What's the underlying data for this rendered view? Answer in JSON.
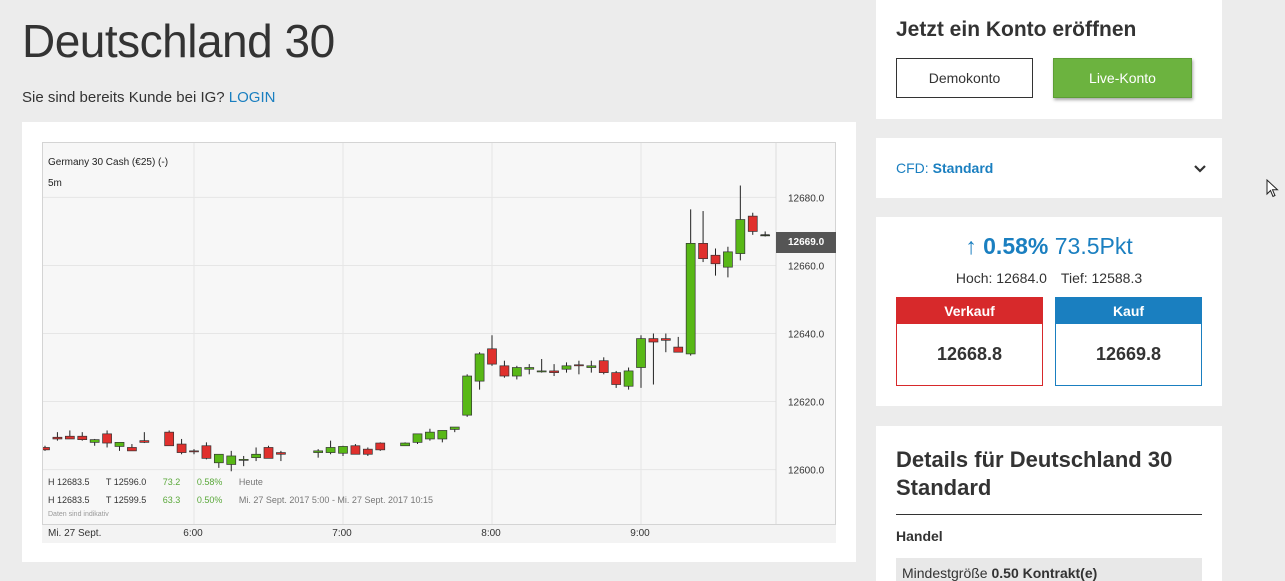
{
  "page": {
    "title": "Deutschland 30",
    "login_prompt": "Sie sind bereits Kunde bei IG?",
    "login_link": "LOGIN"
  },
  "chart": {
    "instrument": "Germany 30 Cash (€25) (-)",
    "interval": "5m",
    "current_price": "12669.0",
    "stats_today": {
      "high": "H 12683.5",
      "low": "T 12596.0",
      "change": "73.2",
      "pct": "0.58%",
      "label": "Heute"
    },
    "stats_range": {
      "high": "H 12683.5",
      "low": "T 12599.5",
      "change": "63.3",
      "pct": "0.50%",
      "label": "Mi. 27 Sept. 2017 5:00 - Mi. 27 Sept. 2017 10:15"
    },
    "disclaimer": "Daten sind indikativ",
    "x_first_label": "Mi. 27 Sept.",
    "colors": {
      "up": "#58b816",
      "down": "#e0302d",
      "wick": "#222222"
    }
  },
  "chart_data": {
    "type": "candlestick",
    "title": "Germany 30 Cash (€25) (-)",
    "interval": "5m",
    "x_ticks": [
      "6:00",
      "7:00",
      "8:00",
      "9:00"
    ],
    "y_ticks": [
      "12600.0",
      "12620.0",
      "12640.0",
      "12660.0",
      "12680.0"
    ],
    "ylim": [
      12584,
      12696
    ],
    "current_price": 12669.0,
    "candles": [
      {
        "t": "5:00",
        "o": 12606.5,
        "h": 12607.0,
        "l": 12605.5,
        "c": 12605.8
      },
      {
        "t": "5:05",
        "o": 12609.5,
        "h": 12611.0,
        "l": 12608.5,
        "c": 12609.0
      },
      {
        "t": "5:10",
        "o": 12609.8,
        "h": 12611.5,
        "l": 12609.0,
        "c": 12609.0
      },
      {
        "t": "5:15",
        "o": 12609.8,
        "h": 12611.0,
        "l": 12608.5,
        "c": 12608.8
      },
      {
        "t": "5:20",
        "o": 12608.0,
        "h": 12609.0,
        "l": 12607.0,
        "c": 12608.8
      },
      {
        "t": "5:25",
        "o": 12610.5,
        "h": 12611.5,
        "l": 12606.5,
        "c": 12607.8
      },
      {
        "t": "5:30",
        "o": 12606.8,
        "h": 12608.0,
        "l": 12605.5,
        "c": 12608.0
      },
      {
        "t": "5:35",
        "o": 12606.5,
        "h": 12607.5,
        "l": 12605.5,
        "c": 12605.5
      },
      {
        "t": "5:40",
        "o": 12608.5,
        "h": 12611.0,
        "l": 12607.8,
        "c": 12608.0
      },
      {
        "t": "5:50",
        "o": 12611.0,
        "h": 12611.5,
        "l": 12607.0,
        "c": 12607.0
      },
      {
        "t": "5:55",
        "o": 12607.5,
        "h": 12609.0,
        "l": 12604.5,
        "c": 12605.0
      },
      {
        "t": "6:00",
        "o": 12605.5,
        "h": 12606.0,
        "l": 12604.5,
        "c": 12605.3
      },
      {
        "t": "6:05",
        "o": 12607.0,
        "h": 12608.0,
        "l": 12603.0,
        "c": 12603.3
      },
      {
        "t": "6:10",
        "o": 12602.0,
        "h": 12603.5,
        "l": 12600.5,
        "c": 12604.5
      },
      {
        "t": "6:15",
        "o": 12601.5,
        "h": 12605.5,
        "l": 12599.5,
        "c": 12604.0
      },
      {
        "t": "6:20",
        "o": 12603.0,
        "h": 12604.0,
        "l": 12601.0,
        "c": 12603.0
      },
      {
        "t": "6:25",
        "o": 12603.5,
        "h": 12606.5,
        "l": 12602.5,
        "c": 12604.5
      },
      {
        "t": "6:30",
        "o": 12606.5,
        "h": 12607.0,
        "l": 12603.3,
        "c": 12603.3
      },
      {
        "t": "6:35",
        "o": 12605.0,
        "h": 12605.5,
        "l": 12602.5,
        "c": 12604.5
      },
      {
        "t": "6:50",
        "o": 12605.0,
        "h": 12606.0,
        "l": 12603.5,
        "c": 12605.5
      },
      {
        "t": "6:55",
        "o": 12605.0,
        "h": 12608.5,
        "l": 12604.5,
        "c": 12606.5
      },
      {
        "t": "7:00",
        "o": 12604.8,
        "h": 12607.0,
        "l": 12604.0,
        "c": 12606.8
      },
      {
        "t": "7:05",
        "o": 12607.0,
        "h": 12607.5,
        "l": 12604.5,
        "c": 12604.5
      },
      {
        "t": "7:10",
        "o": 12606.0,
        "h": 12606.5,
        "l": 12604.0,
        "c": 12604.5
      },
      {
        "t": "7:15",
        "o": 12607.8,
        "h": 12608.0,
        "l": 12605.5,
        "c": 12605.8
      },
      {
        "t": "7:25",
        "o": 12607.0,
        "h": 12608.0,
        "l": 12607.0,
        "c": 12607.8
      },
      {
        "t": "7:30",
        "o": 12608.0,
        "h": 12610.0,
        "l": 12607.5,
        "c": 12610.5
      },
      {
        "t": "7:35",
        "o": 12609.0,
        "h": 12612.0,
        "l": 12608.5,
        "c": 12611.0
      },
      {
        "t": "7:40",
        "o": 12609.0,
        "h": 12611.5,
        "l": 12608.0,
        "c": 12611.5
      },
      {
        "t": "7:45",
        "o": 12611.8,
        "h": 12612.5,
        "l": 12611.0,
        "c": 12612.5
      },
      {
        "t": "7:50",
        "o": 12616.0,
        "h": 12628.0,
        "l": 12615.5,
        "c": 12627.5
      },
      {
        "t": "7:55",
        "o": 12626.0,
        "h": 12634.5,
        "l": 12623.5,
        "c": 12634.0
      },
      {
        "t": "8:00",
        "o": 12635.5,
        "h": 12639.5,
        "l": 12630.5,
        "c": 12631.0
      },
      {
        "t": "8:05",
        "o": 12630.5,
        "h": 12632.0,
        "l": 12627.0,
        "c": 12627.5
      },
      {
        "t": "8:10",
        "o": 12627.5,
        "h": 12630.5,
        "l": 12626.5,
        "c": 12630.0
      },
      {
        "t": "8:15",
        "o": 12629.5,
        "h": 12631.0,
        "l": 12628.0,
        "c": 12630.0
      },
      {
        "t": "8:20",
        "o": 12629.0,
        "h": 12632.5,
        "l": 12628.5,
        "c": 12629.0
      },
      {
        "t": "8:25",
        "o": 12629.0,
        "h": 12631.0,
        "l": 12627.5,
        "c": 12628.5
      },
      {
        "t": "8:30",
        "o": 12629.5,
        "h": 12631.5,
        "l": 12628.5,
        "c": 12630.5
      },
      {
        "t": "8:35",
        "o": 12630.8,
        "h": 12632.0,
        "l": 12628.0,
        "c": 12630.5
      },
      {
        "t": "8:40",
        "o": 12630.0,
        "h": 12632.0,
        "l": 12628.5,
        "c": 12630.5
      },
      {
        "t": "8:45",
        "o": 12632.0,
        "h": 12633.0,
        "l": 12628.0,
        "c": 12628.5
      },
      {
        "t": "8:50",
        "o": 12628.5,
        "h": 12629.0,
        "l": 12624.0,
        "c": 12625.0
      },
      {
        "t": "8:55",
        "o": 12624.5,
        "h": 12630.0,
        "l": 12623.5,
        "c": 12629.0
      },
      {
        "t": "9:00",
        "o": 12630.0,
        "h": 12639.5,
        "l": 12624.0,
        "c": 12638.5
      },
      {
        "t": "9:05",
        "o": 12638.5,
        "h": 12640.0,
        "l": 12625.0,
        "c": 12637.5
      },
      {
        "t": "9:10",
        "o": 12638.5,
        "h": 12640.0,
        "l": 12634.5,
        "c": 12638.0
      },
      {
        "t": "9:15",
        "o": 12636.0,
        "h": 12639.0,
        "l": 12634.5,
        "c": 12634.5
      },
      {
        "t": "9:20",
        "o": 12634.0,
        "h": 12676.5,
        "l": 12633.5,
        "c": 12666.5
      },
      {
        "t": "9:25",
        "o": 12666.5,
        "h": 12676.0,
        "l": 12661.0,
        "c": 12662.0
      },
      {
        "t": "9:30",
        "o": 12663.0,
        "h": 12665.0,
        "l": 12657.0,
        "c": 12660.5
      },
      {
        "t": "9:35",
        "o": 12659.5,
        "h": 12665.5,
        "l": 12656.5,
        "c": 12664.0
      },
      {
        "t": "9:40",
        "o": 12663.5,
        "h": 12683.5,
        "l": 12661.5,
        "c": 12673.5
      },
      {
        "t": "9:45",
        "o": 12674.5,
        "h": 12675.5,
        "l": 12669.0,
        "c": 12670.0
      },
      {
        "t": "9:50",
        "o": 12669.0,
        "h": 12670.0,
        "l": 12668.5,
        "c": 12669.0
      }
    ]
  },
  "account": {
    "heading": "Jetzt ein Konto eröffnen",
    "demo_label": "Demokonto",
    "live_label": "Live-Konto"
  },
  "cfd": {
    "label": "CFD:",
    "value": "Standard"
  },
  "quote": {
    "arrow": "↑",
    "change_pct": "0.58%",
    "change_pts": "73.5Pkt",
    "high": "Hoch: 12684.0",
    "low": "Tief: 12588.3",
    "sell_label": "Verkauf",
    "sell_price": "12668.8",
    "buy_label": "Kauf",
    "buy_price": "12669.8"
  },
  "details": {
    "title": "Details für Deutschland 30 Standard",
    "section": "Handel",
    "row_label": "Mindestgröße",
    "row_value": "0.50 Kontrakt(e)"
  }
}
